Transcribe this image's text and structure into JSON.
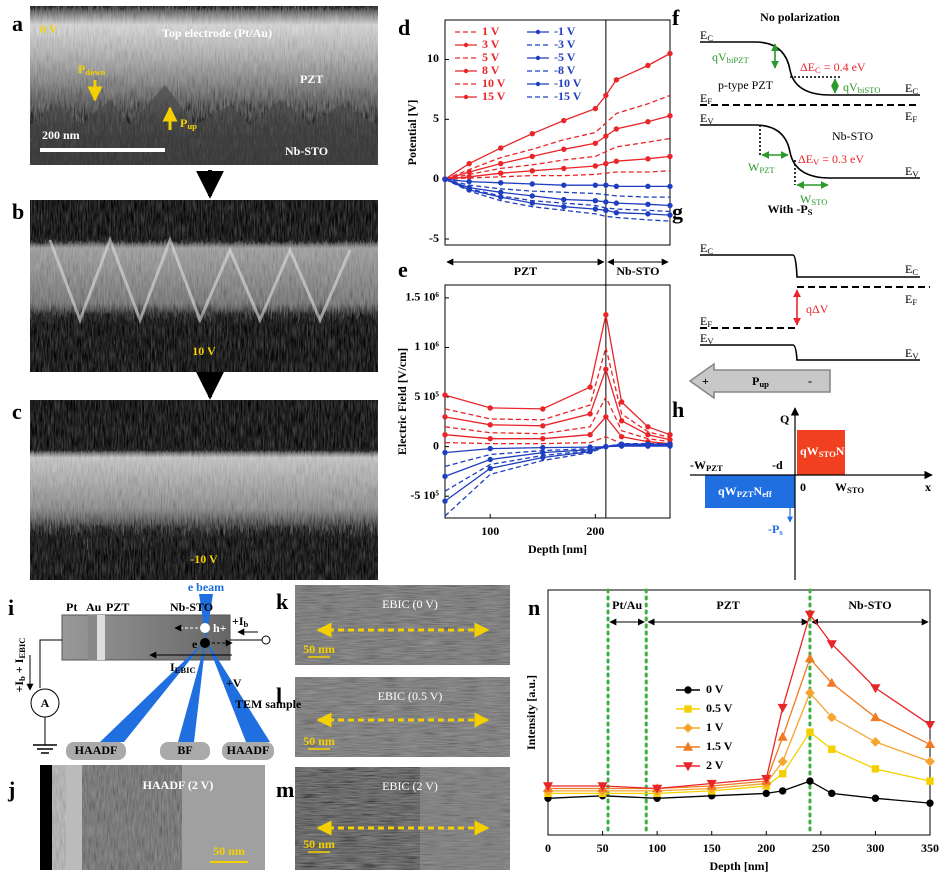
{
  "panel_labels": [
    "a",
    "b",
    "c",
    "d",
    "e",
    "f",
    "g",
    "h",
    "i",
    "j",
    "k",
    "l",
    "m",
    "n"
  ],
  "a": {
    "voltage": "0 V",
    "electrode": "Top electrode (Pt/Au)",
    "layer": "PZT",
    "substrate": "Nb-STO",
    "scale": "200 nm",
    "p_down": [
      "P",
      "down"
    ],
    "p_up": [
      "P",
      "up"
    ]
  },
  "b": {
    "voltage": "10 V"
  },
  "c": {
    "voltage": "-10 V"
  },
  "chart_data": [
    {
      "type": "line",
      "ylabel": "Potential [V]",
      "xlim": [
        57,
        271
      ],
      "ylim": [
        -5.5,
        13.3
      ],
      "yticks": [
        -5,
        0,
        5,
        10
      ],
      "interface": 210,
      "annotations": [
        "PZT",
        "Nb-STO"
      ],
      "x": [
        57,
        80,
        110,
        140,
        170,
        200,
        210,
        220,
        250,
        271
      ],
      "series": [
        {
          "name": "1 V",
          "color": "#e8262a",
          "dash": true,
          "values": [
            0,
            0.1,
            0.2,
            0.3,
            0.3,
            0.4,
            0.5,
            0.6,
            0.6,
            0.7
          ]
        },
        {
          "name": "3 V",
          "color": "#e8262a",
          "marker": "circle",
          "values": [
            0,
            0.2,
            0.5,
            0.7,
            0.9,
            1.1,
            1.3,
            1.5,
            1.7,
            1.9
          ]
        },
        {
          "name": "5 V",
          "color": "#e8262a",
          "dash": true,
          "values": [
            0,
            0.4,
            0.9,
            1.2,
            1.6,
            1.9,
            2.3,
            2.7,
            3.1,
            3.4
          ]
        },
        {
          "name": "8 V",
          "color": "#e8262a",
          "marker": "circle",
          "values": [
            0,
            0.6,
            1.3,
            1.9,
            2.5,
            3.0,
            3.6,
            4.2,
            4.8,
            5.3
          ]
        },
        {
          "name": "10 V",
          "color": "#e8262a",
          "dash": true,
          "values": [
            0,
            0.8,
            1.8,
            2.5,
            3.3,
            3.9,
            4.7,
            5.5,
            6.3,
            7.0
          ]
        },
        {
          "name": "15 V",
          "color": "#e8262a",
          "marker": "circle",
          "values": [
            0,
            1.3,
            2.6,
            3.8,
            4.9,
            5.9,
            7.0,
            8.3,
            9.5,
            10.5
          ]
        },
        {
          "name": "-1 V",
          "color": "#1f3fbf",
          "marker": "circle",
          "values": [
            0,
            -0.2,
            -0.3,
            -0.4,
            -0.5,
            -0.5,
            -0.5,
            -0.6,
            -0.6,
            -0.6
          ]
        },
        {
          "name": "-3 V",
          "color": "#1f3fbf",
          "dash": true,
          "values": [
            0,
            -0.5,
            -0.8,
            -1.0,
            -1.1,
            -1.2,
            -1.3,
            -1.4,
            -1.5,
            -1.5
          ]
        },
        {
          "name": "-5 V",
          "color": "#1f3fbf",
          "marker": "circle",
          "values": [
            0,
            -0.7,
            -1.1,
            -1.4,
            -1.7,
            -1.8,
            -1.9,
            -2.0,
            -2.1,
            -2.2
          ]
        },
        {
          "name": "-8 V",
          "color": "#1f3fbf",
          "dash": true,
          "values": [
            0,
            -0.8,
            -1.4,
            -1.8,
            -2.0,
            -2.2,
            -2.4,
            -2.5,
            -2.6,
            -2.7
          ]
        },
        {
          "name": "-10 V",
          "color": "#1f3fbf",
          "marker": "circle",
          "values": [
            0,
            -0.9,
            -1.5,
            -2.0,
            -2.3,
            -2.5,
            -2.6,
            -2.8,
            -2.9,
            -3.0
          ]
        },
        {
          "name": "-15 V",
          "color": "#1f3fbf",
          "dash": true,
          "values": [
            0,
            -1.0,
            -1.8,
            -2.3,
            -2.6,
            -2.9,
            -3.1,
            -3.2,
            -3.4,
            -3.5
          ]
        }
      ]
    },
    {
      "type": "line",
      "ylabel": "Electric Field [V/cm]",
      "xlabel": "Depth [nm]",
      "xlim": [
        57,
        271
      ],
      "ylim": [
        -720000,
        1630000
      ],
      "xticks": [
        100,
        200
      ],
      "yticks": [
        {
          "value": -500000,
          "label": "-5 10⁵"
        },
        0,
        {
          "value": 500000,
          "label": "5 10⁵"
        },
        {
          "value": 1000000,
          "label": "1 10⁶"
        },
        {
          "value": 1500000,
          "label": "1.5 10⁶"
        }
      ],
      "interface": 210,
      "x": [
        57,
        100,
        150,
        195,
        210,
        225,
        250,
        271
      ],
      "series": [
        {
          "color": "#e8262a",
          "dash": true,
          "values": [
            40000,
            30000,
            30000,
            40000,
            100000,
            30000,
            20000,
            10000
          ]
        },
        {
          "color": "#e8262a",
          "marker": "circle",
          "values": [
            120000,
            80000,
            80000,
            120000,
            300000,
            100000,
            50000,
            30000
          ]
        },
        {
          "color": "#e8262a",
          "dash": true,
          "values": [
            200000,
            140000,
            130000,
            200000,
            500000,
            160000,
            80000,
            50000
          ]
        },
        {
          "color": "#e8262a",
          "marker": "circle",
          "values": [
            300000,
            220000,
            210000,
            330000,
            780000,
            260000,
            120000,
            70000
          ]
        },
        {
          "color": "#e8262a",
          "dash": true,
          "values": [
            380000,
            280000,
            270000,
            420000,
            1000000,
            330000,
            150000,
            90000
          ]
        },
        {
          "color": "#e8262a",
          "marker": "circle",
          "values": [
            520000,
            390000,
            380000,
            600000,
            1330000,
            450000,
            200000,
            120000
          ]
        },
        {
          "color": "#1f3fbf",
          "marker": "circle",
          "values": [
            -60000,
            -20000,
            -10000,
            -5000,
            0,
            5000,
            5000,
            5000
          ]
        },
        {
          "color": "#1f3fbf",
          "dash": true,
          "values": [
            -200000,
            -80000,
            -40000,
            -20000,
            0,
            10000,
            10000,
            10000
          ]
        },
        {
          "color": "#1f3fbf",
          "marker": "circle",
          "values": [
            -300000,
            -130000,
            -60000,
            -30000,
            0,
            15000,
            15000,
            15000
          ]
        },
        {
          "color": "#1f3fbf",
          "dash": true,
          "values": [
            -450000,
            -180000,
            -90000,
            -40000,
            0,
            20000,
            20000,
            20000
          ]
        },
        {
          "color": "#1f3fbf",
          "marker": "circle",
          "values": [
            -550000,
            -220000,
            -110000,
            -50000,
            0,
            25000,
            25000,
            25000
          ]
        },
        {
          "color": "#1f3fbf",
          "dash": true,
          "values": [
            -700000,
            -280000,
            -140000,
            -60000,
            0,
            30000,
            30000,
            30000
          ]
        }
      ]
    },
    {
      "type": "line",
      "ylabel": "Intensity [a.u.]",
      "xlabel": "Depth [nm]",
      "xlim": [
        0,
        350
      ],
      "ylim": [
        0,
        1
      ],
      "xticks": [
        0,
        50,
        100,
        150,
        200,
        250,
        300,
        350
      ],
      "regions": [
        "Pt/Au",
        "PZT",
        "Nb-STO"
      ],
      "boundaries": [
        55,
        90,
        240
      ],
      "boundary_color": "#3cb043",
      "x": [
        0,
        50,
        100,
        150,
        200,
        215,
        240,
        260,
        300,
        350
      ],
      "series": [
        {
          "name": "0 V",
          "color": "#000000",
          "marker": "circle",
          "values": [
            0.15,
            0.16,
            0.15,
            0.16,
            0.17,
            0.18,
            0.22,
            0.17,
            0.15,
            0.13
          ]
        },
        {
          "name": "0.5 V",
          "color": "#f5d000",
          "marker": "square",
          "values": [
            0.17,
            0.17,
            0.17,
            0.18,
            0.2,
            0.25,
            0.42,
            0.35,
            0.27,
            0.22
          ]
        },
        {
          "name": "1 V",
          "color": "#f7a531",
          "marker": "diamond",
          "values": [
            0.18,
            0.18,
            0.18,
            0.19,
            0.21,
            0.3,
            0.58,
            0.48,
            0.38,
            0.3
          ]
        },
        {
          "name": "1.5 V",
          "color": "#f07b22",
          "marker": "triangle",
          "values": [
            0.19,
            0.19,
            0.19,
            0.2,
            0.22,
            0.4,
            0.72,
            0.62,
            0.48,
            0.37
          ]
        },
        {
          "name": "2 V",
          "color": "#e8262a",
          "marker": "triangle-down",
          "values": [
            0.2,
            0.2,
            0.19,
            0.21,
            0.23,
            0.52,
            0.9,
            0.78,
            0.6,
            0.45
          ]
        }
      ]
    }
  ],
  "f": {
    "title": "No polarization",
    "labels": [
      [
        "E",
        "C"
      ],
      [
        "qV",
        "biPZT"
      ],
      [
        "ΔE",
        "C",
        " = 0.4 eV"
      ],
      [
        "p-type PZT"
      ],
      [
        "E",
        "F"
      ],
      [
        "qV",
        "biSTO"
      ],
      [
        "E",
        "C"
      ],
      [
        "E",
        "F"
      ],
      [
        "E",
        "V"
      ],
      [
        "Nb-STO"
      ],
      [
        "W",
        "PZT"
      ],
      [
        "ΔE",
        "V",
        " = 0.3 eV"
      ],
      [
        "W",
        "STO"
      ],
      [
        "E",
        "V"
      ]
    ]
  },
  "g": {
    "title": [
      "With -P",
      "S"
    ],
    "labels": [
      [
        "E",
        "C"
      ],
      [
        "E",
        "C"
      ],
      [
        "E",
        "F"
      ],
      [
        "qΔV"
      ],
      [
        "E",
        "F"
      ],
      [
        "E",
        "V"
      ],
      [
        "E",
        "V"
      ],
      [
        "P",
        "up"
      ],
      [
        "+"
      ],
      [
        "-"
      ]
    ]
  },
  "h": {
    "labels": [
      [
        "Q"
      ],
      [
        "-W",
        "PZT"
      ],
      [
        "-d"
      ],
      [
        "0"
      ],
      [
        "W",
        "STO"
      ],
      [
        "x"
      ],
      [
        "qW",
        "STO",
        "N",
        "D"
      ],
      [
        "qW",
        "PZT",
        "N",
        "eff"
      ],
      [
        "-P",
        "s"
      ]
    ]
  },
  "i": {
    "labels": [
      [
        "e beam"
      ],
      [
        "Pt"
      ],
      [
        "Au"
      ],
      [
        "PZT"
      ],
      [
        "Nb-STO"
      ],
      [
        "+I",
        "b"
      ],
      [
        "h+"
      ],
      [
        "e"
      ],
      [
        "I",
        "EBIC"
      ],
      [
        "+V"
      ],
      [
        "TEM sample"
      ],
      [
        "+I",
        "b",
        " + I",
        "EBIC"
      ],
      [
        "A"
      ],
      [
        "HAADF"
      ],
      [
        "BF"
      ],
      [
        "HAADF"
      ]
    ]
  },
  "j": {
    "label": "HAADF (2 V)",
    "scale": "50 nm"
  },
  "k": {
    "label": "EBIC (0 V)",
    "scale": "50 nm"
  },
  "l": {
    "label": "EBIC (0.5 V)",
    "scale": "50 nm"
  },
  "m": {
    "label": "EBIC (2 V)",
    "scale": "50 nm"
  }
}
